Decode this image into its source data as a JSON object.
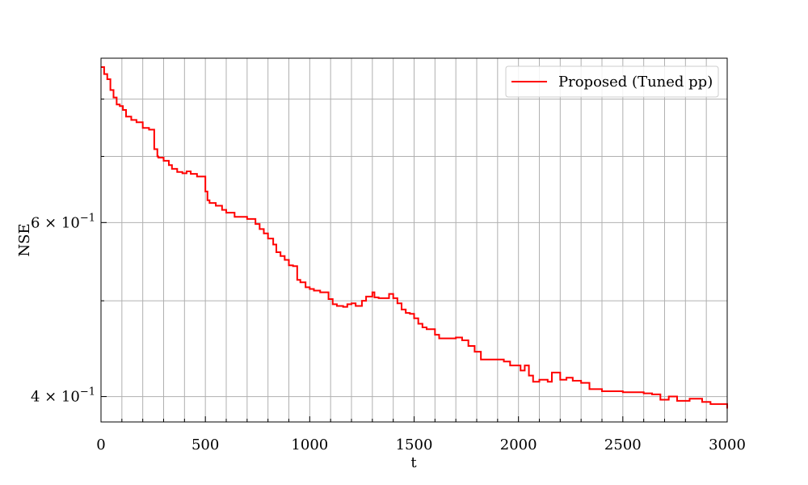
{
  "chart_data": {
    "type": "line",
    "title": "",
    "xlabel": "t",
    "ylabel": "NSE",
    "xlim": [
      0,
      3000
    ],
    "ylim": [
      0.377,
      0.88
    ],
    "y_scale": "log",
    "grid": true,
    "legend_position": "top-right",
    "x_ticks": [
      0,
      500,
      1000,
      1500,
      2000,
      2500,
      3000
    ],
    "x_tick_labels": [
      "0",
      "500",
      "1000",
      "1500",
      "2000",
      "2500",
      "3000"
    ],
    "y_major_ticks": [
      0.4,
      0.6
    ],
    "y_major_tick_labels": [
      {
        "base": "4 × 10",
        "exp": "−1"
      },
      {
        "base": "6 × 10",
        "exp": "−1"
      }
    ],
    "series": [
      {
        "name": "Proposed (Tuned pp)",
        "color": "#ff0000",
        "x": [
          0,
          15,
          30,
          45,
          60,
          75,
          90,
          105,
          120,
          145,
          170,
          200,
          230,
          255,
          270,
          275,
          300,
          325,
          340,
          365,
          390,
          410,
          430,
          460,
          500,
          510,
          520,
          550,
          580,
          600,
          640,
          700,
          740,
          760,
          780,
          800,
          825,
          840,
          860,
          880,
          900,
          920,
          940,
          955,
          980,
          1000,
          1020,
          1050,
          1090,
          1110,
          1130,
          1160,
          1180,
          1200,
          1220,
          1250,
          1270,
          1300,
          1310,
          1330,
          1380,
          1400,
          1420,
          1440,
          1460,
          1480,
          1500,
          1520,
          1540,
          1560,
          1600,
          1620,
          1700,
          1730,
          1760,
          1790,
          1820,
          1880,
          1930,
          1960,
          2010,
          2030,
          2050,
          2070,
          2100,
          2140,
          2160,
          2200,
          2230,
          2260,
          2300,
          2340,
          2400,
          2500,
          2600,
          2640,
          2680,
          2720,
          2760,
          2820,
          2880,
          2920,
          3000
        ],
        "y": [
          0.862,
          0.848,
          0.838,
          0.817,
          0.803,
          0.79,
          0.787,
          0.78,
          0.768,
          0.762,
          0.758,
          0.748,
          0.745,
          0.712,
          0.7,
          0.698,
          0.693,
          0.686,
          0.68,
          0.675,
          0.673,
          0.676,
          0.672,
          0.668,
          0.645,
          0.632,
          0.628,
          0.624,
          0.618,
          0.614,
          0.608,
          0.605,
          0.598,
          0.591,
          0.585,
          0.578,
          0.57,
          0.56,
          0.555,
          0.55,
          0.543,
          0.542,
          0.525,
          0.522,
          0.516,
          0.514,
          0.512,
          0.51,
          0.502,
          0.496,
          0.494,
          0.493,
          0.496,
          0.497,
          0.494,
          0.5,
          0.505,
          0.51,
          0.504,
          0.503,
          0.508,
          0.503,
          0.497,
          0.49,
          0.486,
          0.485,
          0.48,
          0.474,
          0.47,
          0.468,
          0.462,
          0.458,
          0.459,
          0.456,
          0.45,
          0.444,
          0.436,
          0.436,
          0.434,
          0.43,
          0.425,
          0.43,
          0.42,
          0.414,
          0.416,
          0.414,
          0.423,
          0.416,
          0.418,
          0.415,
          0.413,
          0.407,
          0.405,
          0.404,
          0.403,
          0.402,
          0.397,
          0.4,
          0.396,
          0.398,
          0.395,
          0.393,
          0.389
        ]
      }
    ]
  }
}
